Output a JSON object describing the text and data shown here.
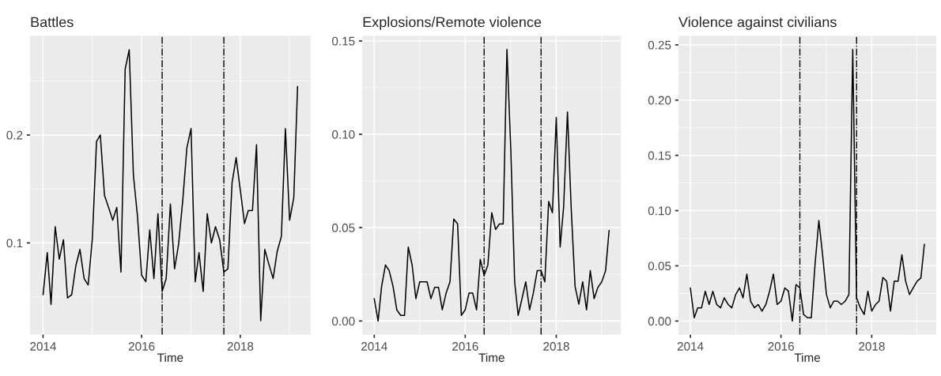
{
  "chart_data": [
    {
      "type": "line",
      "title": "Battles",
      "xlabel": "Time",
      "x": [
        "2014-01",
        "2014-02",
        "2014-03",
        "2014-04",
        "2014-05",
        "2014-06",
        "2014-07",
        "2014-08",
        "2014-09",
        "2014-10",
        "2014-11",
        "2014-12",
        "2015-01",
        "2015-02",
        "2015-03",
        "2015-04",
        "2015-05",
        "2015-06",
        "2015-07",
        "2015-08",
        "2015-09",
        "2015-10",
        "2015-11",
        "2015-12",
        "2016-01",
        "2016-02",
        "2016-03",
        "2016-04",
        "2016-05",
        "2016-06",
        "2016-07",
        "2016-08",
        "2016-09",
        "2016-10",
        "2016-11",
        "2016-12",
        "2017-01",
        "2017-02",
        "2017-03",
        "2017-04",
        "2017-05",
        "2017-06",
        "2017-07",
        "2017-08",
        "2017-09",
        "2017-10",
        "2017-11",
        "2017-12",
        "2018-01",
        "2018-02",
        "2018-03",
        "2018-04",
        "2018-05",
        "2018-06",
        "2018-07",
        "2018-08",
        "2018-09",
        "2018-10",
        "2018-11",
        "2018-12",
        "2019-01",
        "2019-02",
        "2019-03"
      ],
      "series": [
        {
          "color": "#000000",
          "values": [
            0.052,
            0.091,
            0.043,
            0.115,
            0.085,
            0.103,
            0.049,
            0.052,
            0.079,
            0.094,
            0.067,
            0.061,
            0.104,
            0.194,
            0.2,
            0.144,
            0.133,
            0.121,
            0.133,
            0.073,
            0.261,
            0.279,
            0.163,
            0.125,
            0.07,
            0.064,
            0.112,
            0.067,
            0.127,
            0.055,
            0.067,
            0.136,
            0.076,
            0.099,
            0.14,
            0.188,
            0.206,
            0.064,
            0.091,
            0.055,
            0.127,
            0.1,
            0.115,
            0.103,
            0.073,
            0.076,
            0.156,
            0.179,
            0.149,
            0.118,
            0.13,
            0.13,
            0.191,
            0.028,
            0.094,
            0.08,
            0.067,
            0.092,
            0.106,
            0.206,
            0.121,
            0.142,
            0.245
          ]
        }
      ],
      "xlim": [
        "2013-09-27",
        "2019-06-05"
      ],
      "xticks": [
        "2014",
        "2016",
        "2018"
      ],
      "ylim": [
        0.015,
        0.292
      ],
      "yticks": [
        {
          "value": 0.1,
          "label": "0.1"
        },
        {
          "value": 0.2,
          "label": "0.2"
        }
      ],
      "ref_lines": [
        {
          "axis": "x",
          "value": "2016-06",
          "color": "#000000"
        },
        {
          "axis": "x",
          "value": "2017-09",
          "color": "#000000"
        }
      ],
      "grid": true,
      "legend": false
    },
    {
      "type": "line",
      "title": "Explosions/Remote violence",
      "xlabel": "Time",
      "x": [
        "2014-01",
        "2014-02",
        "2014-03",
        "2014-04",
        "2014-05",
        "2014-06",
        "2014-07",
        "2014-08",
        "2014-09",
        "2014-10",
        "2014-11",
        "2014-12",
        "2015-01",
        "2015-02",
        "2015-03",
        "2015-04",
        "2015-05",
        "2015-06",
        "2015-07",
        "2015-08",
        "2015-09",
        "2015-10",
        "2015-11",
        "2015-12",
        "2016-01",
        "2016-02",
        "2016-03",
        "2016-04",
        "2016-05",
        "2016-06",
        "2016-07",
        "2016-08",
        "2016-09",
        "2016-10",
        "2016-11",
        "2016-12",
        "2017-01",
        "2017-02",
        "2017-03",
        "2017-04",
        "2017-05",
        "2017-06",
        "2017-07",
        "2017-08",
        "2017-09",
        "2017-10",
        "2017-11",
        "2017-12",
        "2018-01",
        "2018-02",
        "2018-03",
        "2018-04",
        "2018-05",
        "2018-06",
        "2018-07",
        "2018-08",
        "2018-09",
        "2018-10",
        "2018-11",
        "2018-12",
        "2019-01",
        "2019-02",
        "2019-03"
      ],
      "series": [
        {
          "color": "#000000",
          "values": [
            0.012,
            0.0,
            0.0185,
            0.03,
            0.027,
            0.0185,
            0.006,
            0.003,
            0.003,
            0.0396,
            0.03,
            0.012,
            0.021,
            0.021,
            0.021,
            0.012,
            0.018,
            0.018,
            0.006,
            0.015,
            0.021,
            0.0546,
            0.052,
            0.003,
            0.006,
            0.015,
            0.015,
            0.006,
            0.033,
            0.0245,
            0.03,
            0.058,
            0.049,
            0.052,
            0.052,
            0.1455,
            0.092,
            0.021,
            0.003,
            0.012,
            0.021,
            0.006,
            0.015,
            0.027,
            0.027,
            0.021,
            0.064,
            0.058,
            0.109,
            0.0396,
            0.061,
            0.112,
            0.06,
            0.0185,
            0.009,
            0.021,
            0.006,
            0.027,
            0.012,
            0.018,
            0.021,
            0.027,
            0.0485
          ]
        }
      ],
      "xlim": [
        "2013-09-27",
        "2019-06-05"
      ],
      "xticks": [
        "2014",
        "2016",
        "2018"
      ],
      "ylim": [
        -0.0073,
        0.1528
      ],
      "yticks": [
        {
          "value": 0.0,
          "label": "0.00"
        },
        {
          "value": 0.05,
          "label": "0.05"
        },
        {
          "value": 0.1,
          "label": "0.10"
        },
        {
          "value": 0.15,
          "label": "0.15"
        }
      ],
      "ref_lines": [
        {
          "axis": "x",
          "value": "2016-06",
          "color": "#000000"
        },
        {
          "axis": "x",
          "value": "2017-09",
          "color": "#000000"
        }
      ],
      "grid": true,
      "legend": false
    },
    {
      "type": "line",
      "title": "Violence against civilians",
      "xlabel": "Time",
      "x": [
        "2014-01",
        "2014-02",
        "2014-03",
        "2014-04",
        "2014-05",
        "2014-06",
        "2014-07",
        "2014-08",
        "2014-09",
        "2014-10",
        "2014-11",
        "2014-12",
        "2015-01",
        "2015-02",
        "2015-03",
        "2015-04",
        "2015-05",
        "2015-06",
        "2015-07",
        "2015-08",
        "2015-09",
        "2015-10",
        "2015-11",
        "2015-12",
        "2016-01",
        "2016-02",
        "2016-03",
        "2016-04",
        "2016-05",
        "2016-06",
        "2016-07",
        "2016-08",
        "2016-09",
        "2016-10",
        "2016-11",
        "2016-12",
        "2017-01",
        "2017-02",
        "2017-03",
        "2017-04",
        "2017-05",
        "2017-06",
        "2017-07",
        "2017-08",
        "2017-09",
        "2017-10",
        "2017-11",
        "2017-12",
        "2018-01",
        "2018-02",
        "2018-03",
        "2018-04",
        "2018-05",
        "2018-06",
        "2018-07",
        "2018-08",
        "2018-09",
        "2018-10",
        "2018-11",
        "2018-12",
        "2019-01",
        "2019-02",
        "2019-03"
      ],
      "series": [
        {
          "color": "#000000",
          "values": [
            0.03,
            0.003,
            0.012,
            0.012,
            0.027,
            0.015,
            0.027,
            0.015,
            0.012,
            0.021,
            0.015,
            0.012,
            0.024,
            0.03,
            0.021,
            0.0425,
            0.018,
            0.012,
            0.015,
            0.009,
            0.015,
            0.027,
            0.0425,
            0.015,
            0.018,
            0.03,
            0.027,
            0.0,
            0.033,
            0.03,
            0.006,
            0.003,
            0.003,
            0.051,
            0.091,
            0.06,
            0.024,
            0.012,
            0.018,
            0.018,
            0.015,
            0.018,
            0.024,
            0.246,
            0.021,
            0.012,
            0.006,
            0.027,
            0.009,
            0.015,
            0.018,
            0.0395,
            0.036,
            0.009,
            0.036,
            0.036,
            0.06,
            0.036,
            0.024,
            0.03,
            0.036,
            0.039,
            0.0695
          ]
        }
      ],
      "xlim": [
        "2013-09-27",
        "2019-06-05"
      ],
      "xticks": [
        "2014",
        "2016",
        "2018"
      ],
      "ylim": [
        -0.0123,
        0.2583
      ],
      "yticks": [
        {
          "value": 0.0,
          "label": "0.00"
        },
        {
          "value": 0.05,
          "label": "0.05"
        },
        {
          "value": 0.1,
          "label": "0.10"
        },
        {
          "value": 0.15,
          "label": "0.15"
        },
        {
          "value": 0.2,
          "label": "0.20"
        },
        {
          "value": 0.25,
          "label": "0.25"
        }
      ],
      "ref_lines": [
        {
          "axis": "x",
          "value": "2016-06",
          "color": "#000000"
        },
        {
          "axis": "x",
          "value": "2017-09",
          "color": "#000000"
        }
      ],
      "grid": true,
      "legend": false
    }
  ]
}
